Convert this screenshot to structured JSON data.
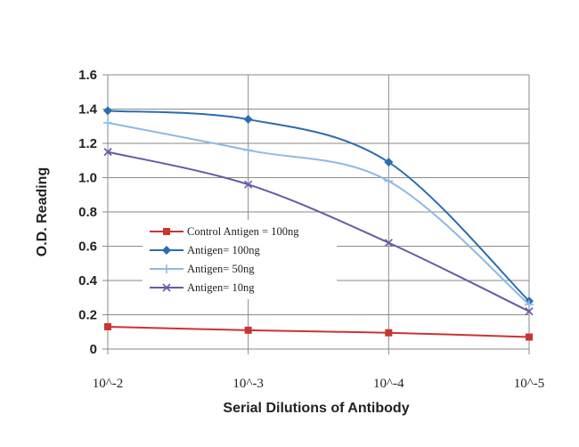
{
  "chart_data": {
    "type": "line",
    "xlabel": "Serial Dilutions of Antibody",
    "ylabel": "O.D. Reading",
    "x": [
      "10^-2",
      "10^-3",
      "10^-4",
      "10^-5"
    ],
    "ylim": [
      0,
      1.6
    ],
    "yticks": [
      "0",
      "0.2",
      "0.4",
      "0.6",
      "0.8",
      "1.0",
      "1.2",
      "1.4",
      "1.6"
    ],
    "grid": true,
    "legend_position": "center-left",
    "series": [
      {
        "name": "Control Antigen = 100ng",
        "color": "#cc3333",
        "marker": "square",
        "values": [
          0.13,
          0.11,
          0.095,
          0.07
        ]
      },
      {
        "name": "Antigen= 100ng",
        "color": "#2a6db0",
        "marker": "diamond",
        "values": [
          1.39,
          1.34,
          1.09,
          0.28
        ]
      },
      {
        "name": "Antigen= 50ng",
        "color": "#8fb9e3",
        "marker": "plus",
        "values": [
          1.32,
          1.16,
          0.98,
          0.26
        ]
      },
      {
        "name": "Antigen= 10ng",
        "color": "#6a58a8",
        "marker": "x",
        "values": [
          1.15,
          0.96,
          0.62,
          0.22
        ]
      }
    ]
  }
}
